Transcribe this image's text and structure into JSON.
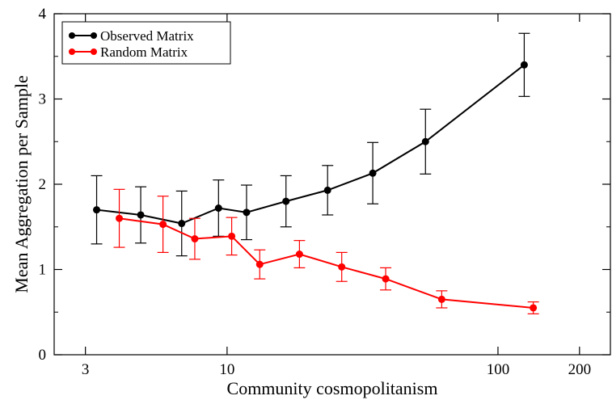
{
  "chart_data": {
    "type": "line",
    "xlabel": "Community cosmopolitanism",
    "ylabel": "Mean Aggregation per Sample",
    "xscale": "log",
    "xlim": [
      2.3,
      260
    ],
    "ylim": [
      0,
      4
    ],
    "xticks": [
      3,
      10,
      100,
      200
    ],
    "xtick_labels": [
      "3",
      "10",
      "100",
      "200"
    ],
    "yticks": [
      0,
      1,
      2,
      3,
      4
    ],
    "ytick_labels": [
      "0",
      "1",
      "2",
      "3",
      "4"
    ],
    "grid": false,
    "legend_position": "top-left",
    "series": [
      {
        "name": "Observed Matrix",
        "color": "#000000",
        "x": [
          3.3,
          4.8,
          6.8,
          9.3,
          11.8,
          16.5,
          23.5,
          34.5,
          54.0,
          125.0
        ],
        "y": [
          1.7,
          1.64,
          1.54,
          1.72,
          1.67,
          1.8,
          1.93,
          2.13,
          2.5,
          3.4
        ],
        "err": [
          0.4,
          0.33,
          0.38,
          0.33,
          0.32,
          0.3,
          0.29,
          0.36,
          0.38,
          0.37
        ]
      },
      {
        "name": "Random Matrix",
        "color": "#ff0000",
        "x": [
          4.0,
          5.8,
          7.6,
          10.4,
          13.2,
          18.5,
          26.5,
          38.5,
          62.0,
          135.0
        ],
        "y": [
          1.6,
          1.53,
          1.36,
          1.39,
          1.06,
          1.18,
          1.03,
          0.89,
          0.65,
          0.55
        ],
        "err": [
          0.34,
          0.33,
          0.24,
          0.22,
          0.17,
          0.16,
          0.17,
          0.13,
          0.1,
          0.07
        ]
      }
    ]
  }
}
